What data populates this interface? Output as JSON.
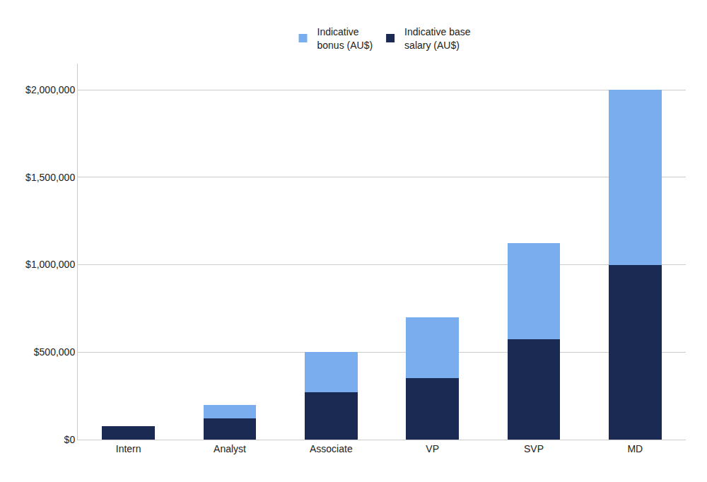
{
  "chart_data": {
    "type": "bar",
    "stacked": true,
    "categories": [
      "Intern",
      "Analyst",
      "Associate",
      "VP",
      "SVP",
      "MD"
    ],
    "series": [
      {
        "name": "Indicative base\nsalary (AU$)",
        "color": "#1b2a52",
        "values": [
          75000,
          120000,
          270000,
          350000,
          575000,
          1000000
        ]
      },
      {
        "name": "Indicative\nbonus (AU$)",
        "color": "#7aadee",
        "values": [
          0,
          80000,
          230000,
          350000,
          550000,
          1000000
        ]
      }
    ],
    "ylim": [
      0,
      2150000
    ],
    "yticks": [
      {
        "value": 0,
        "label": "$0"
      },
      {
        "value": 500000,
        "label": "$500,000"
      },
      {
        "value": 1000000,
        "label": "$1,000,000"
      },
      {
        "value": 1500000,
        "label": "$1,500,000"
      },
      {
        "value": 2000000,
        "label": "$2,000,000"
      }
    ],
    "grid": true,
    "legend": "top"
  }
}
